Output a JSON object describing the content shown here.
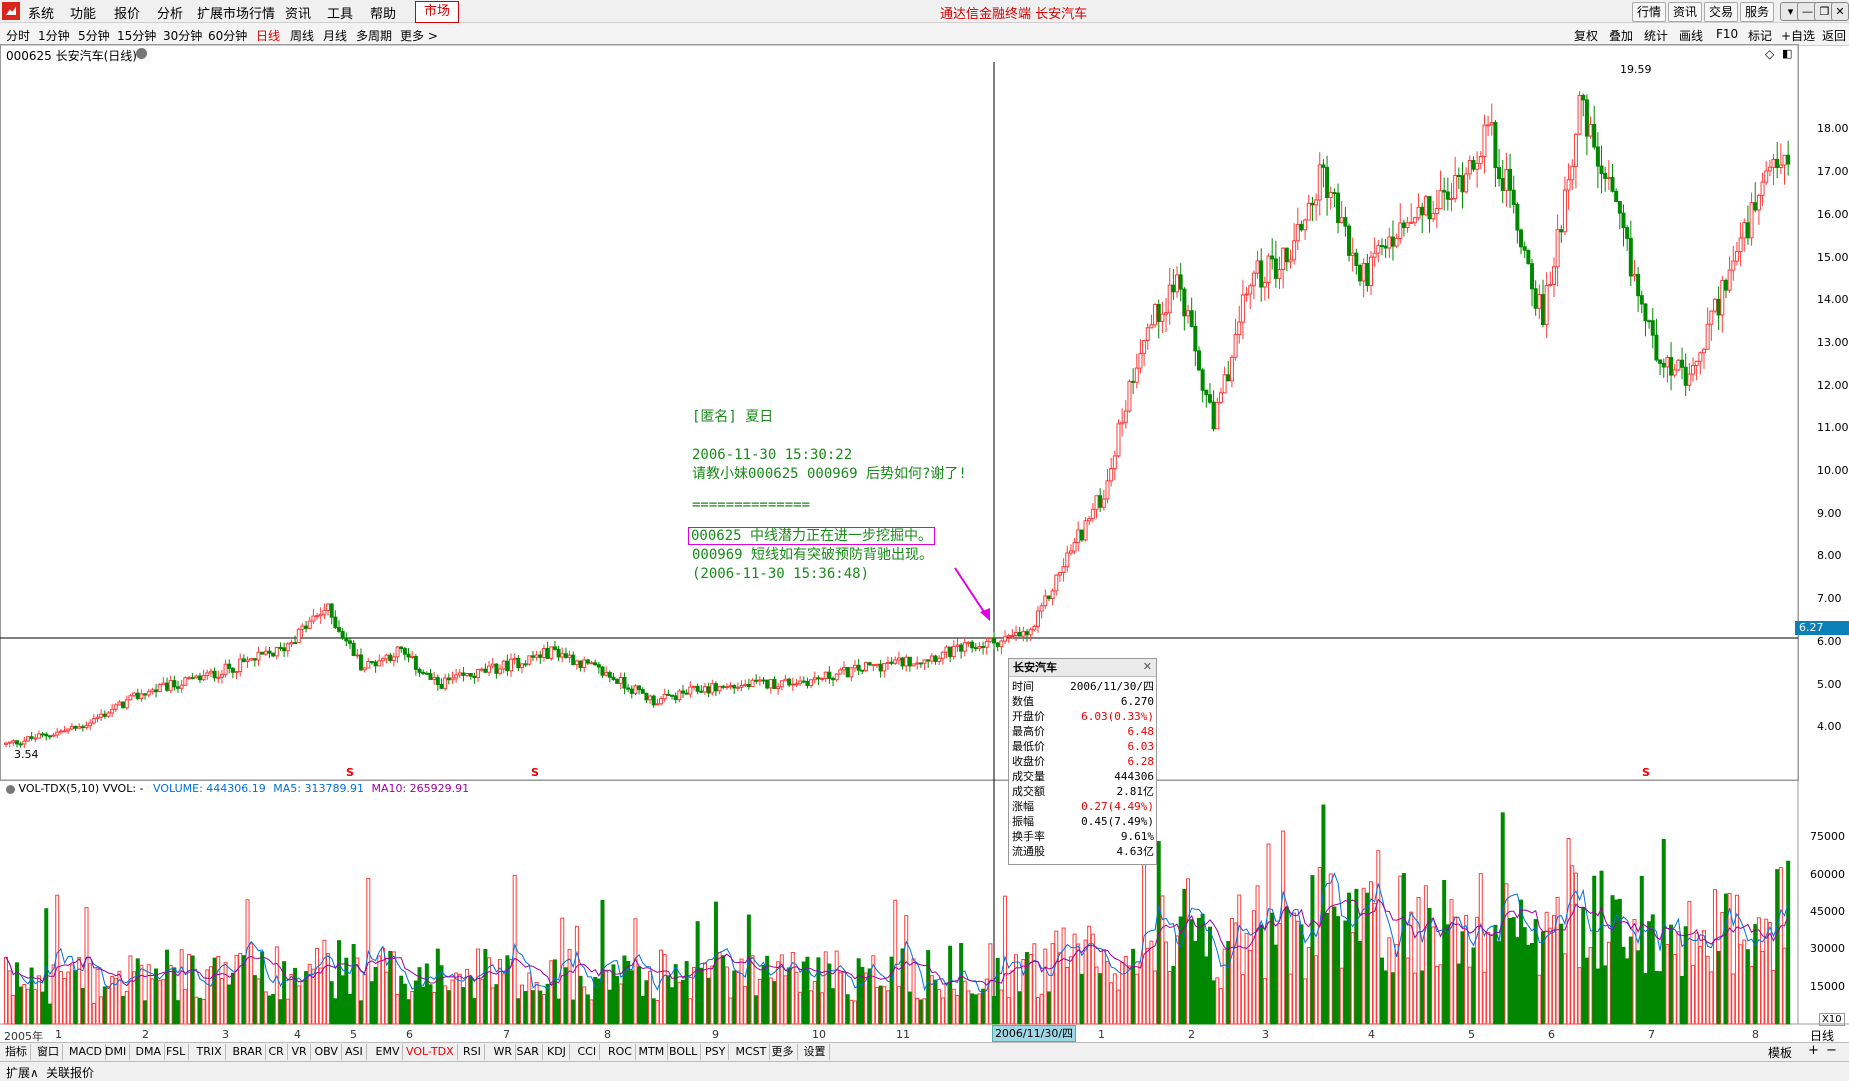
{
  "menubar": {
    "items": [
      "系统",
      "功能",
      "报价",
      "分析",
      "扩展市场行情",
      "资讯",
      "工具",
      "帮助"
    ],
    "market": "市场",
    "app_title": "通达信金融终端  长安汽车",
    "right_tabs": [
      "行情",
      "资讯",
      "交易",
      "服务"
    ],
    "window_buttons": [
      "▾",
      "—",
      "❐",
      "✕"
    ]
  },
  "periodbar": {
    "periods": [
      "分时",
      "1分钟",
      "5分钟",
      "15分钟",
      "30分钟",
      "60分钟",
      "日线",
      "周线",
      "月线",
      "多周期",
      "更多 >"
    ],
    "active": "日线",
    "tools": [
      "复权",
      "叠加",
      "统计",
      "画线",
      "F10",
      "标记",
      "+自选",
      "返回"
    ]
  },
  "stock_label": "000625 长安汽车(日线)",
  "price_axis": {
    "labels": [
      "18.00",
      "17.00",
      "16.00",
      "15.00",
      "14.00",
      "13.00",
      "12.00",
      "11.00",
      "10.00",
      "9.00",
      "8.00",
      "7.00",
      "6.27",
      "6.00",
      "5.00",
      "4.00"
    ],
    "current": "6.27",
    "high_marker": "19.59",
    "low_marker": "3.54"
  },
  "volume_panel": {
    "name": "VOL-TDX(5,10)",
    "vvol": "VVOL: -",
    "volume": "VOLUME: 444306.19",
    "ma5": "MA5: 313789.91",
    "ma10": "MA10: 265929.91",
    "axis_labels": [
      "75000",
      "60000",
      "45000",
      "30000",
      "15000"
    ],
    "scale": "X10"
  },
  "annotation": {
    "author": "[匿名] 夏日",
    "time1": "2006-11-30 15:30:22",
    "question": "请教小妹000625 000969 后势如何?谢了!",
    "separator": "==============",
    "answer1": "000625 中线潜力正在进一步挖掘中。",
    "answer2": "000969 短线如有突破预防背驰出现。",
    "time2": "(2006-11-30 15:36:48)"
  },
  "infobox": {
    "title": "长安汽车",
    "rows": [
      {
        "k": "时间",
        "v": "2006/11/30/四",
        "red": false
      },
      {
        "k": "数值",
        "v": "6.270",
        "red": false
      },
      {
        "k": "开盘价",
        "v": "6.03(0.33%)",
        "red": true
      },
      {
        "k": "最高价",
        "v": "6.48",
        "red": true
      },
      {
        "k": "最低价",
        "v": "6.03",
        "red": true
      },
      {
        "k": "收盘价",
        "v": "6.28",
        "red": true
      },
      {
        "k": "成交量",
        "v": "444306",
        "red": false
      },
      {
        "k": "成交额",
        "v": "2.81亿",
        "red": false
      },
      {
        "k": "涨幅",
        "v": "0.27(4.49%)",
        "red": true
      },
      {
        "k": "振幅",
        "v": "0.45(7.49%)",
        "red": false
      },
      {
        "k": "换手率",
        "v": "9.61%",
        "red": false
      },
      {
        "k": "流通股",
        "v": "4.63亿",
        "red": false
      }
    ]
  },
  "cursor_date": "2006/11/30/四",
  "x_axis": {
    "year": "2005年",
    "months": [
      "1",
      "2",
      "3",
      "4",
      "5",
      "6",
      "7",
      "8",
      "9",
      "10",
      "11",
      "1",
      "2",
      "3",
      "4",
      "5",
      "6",
      "7",
      "8"
    ]
  },
  "indicator_tabs": [
    "指标",
    "窗口",
    "MACD",
    "DMI",
    "DMA",
    "FSL",
    "TRIX",
    "BRAR",
    "CR",
    "VR",
    "OBV",
    "ASI",
    "EMV",
    "VOL-TDX",
    "RSI",
    "WR",
    "SAR",
    "KDJ",
    "CCI",
    "ROC",
    "MTM",
    "BOLL",
    "PSY",
    "MCST",
    "更多",
    "设置"
  ],
  "active_indicator": "VOL-TDX",
  "indicator_right": {
    "template": "模板",
    "plus": "+",
    "minus": "−",
    "period": "日线"
  },
  "bottom_tabs": [
    "扩展∧",
    "关联报价"
  ],
  "signal_marker": "S",
  "colors": {
    "up": "#ff3c3c",
    "down": "#008800",
    "ma5": "#0070e0",
    "ma10": "#a000a0",
    "annot": "#1a8a1a"
  }
}
